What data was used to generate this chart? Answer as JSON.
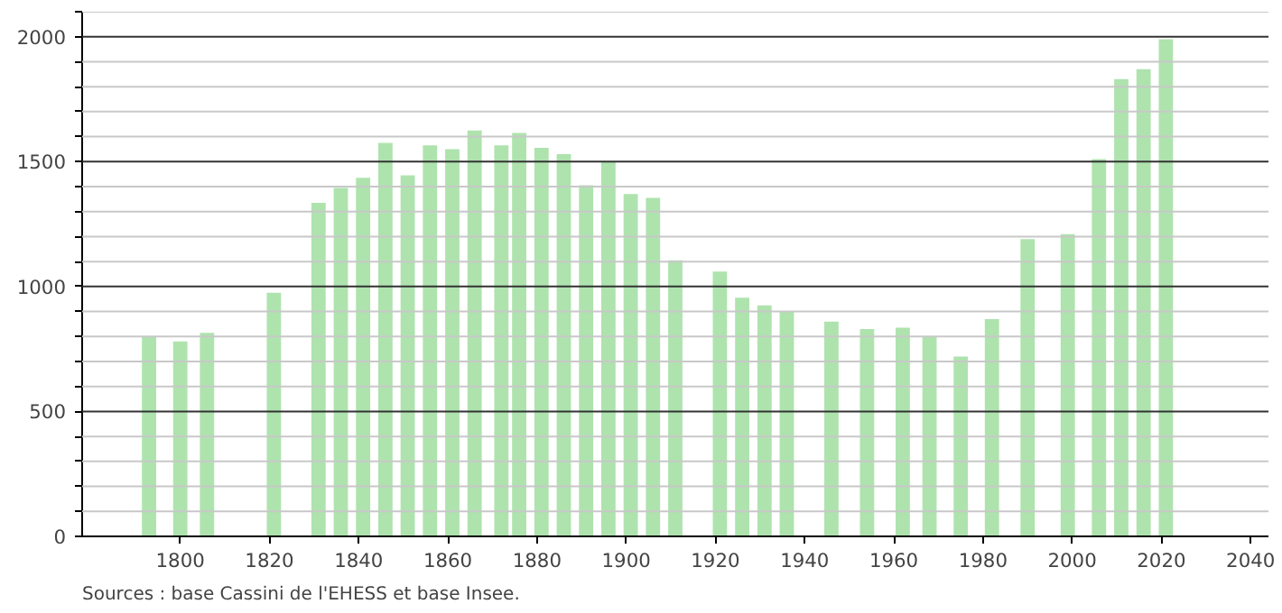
{
  "chart_data": {
    "type": "bar",
    "x": [
      1793,
      1800,
      1806,
      1821,
      1831,
      1836,
      1841,
      1846,
      1851,
      1856,
      1861,
      1866,
      1872,
      1876,
      1881,
      1886,
      1891,
      1896,
      1901,
      1906,
      1911,
      1921,
      1926,
      1931,
      1936,
      1946,
      1954,
      1962,
      1968,
      1975,
      1982,
      1990,
      1999,
      2006,
      2011,
      2016,
      2021
    ],
    "values": [
      800,
      780,
      815,
      975,
      1335,
      1395,
      1435,
      1575,
      1445,
      1565,
      1550,
      1625,
      1565,
      1615,
      1555,
      1530,
      1405,
      1500,
      1370,
      1355,
      1105,
      1060,
      955,
      925,
      900,
      860,
      830,
      835,
      800,
      720,
      870,
      1190,
      1210,
      1510,
      1830,
      1870,
      1990
    ],
    "color": "#aee3ae",
    "xlim": [
      1778,
      2044
    ],
    "xticks": [
      1800,
      1820,
      1840,
      1860,
      1880,
      1900,
      1920,
      1940,
      1960,
      1980,
      2000,
      2020,
      2040
    ],
    "ylim": [
      0,
      2100
    ],
    "yticks": [
      0,
      {
        "value": 100,
        "label": null
      },
      {
        "value": 200,
        "label": null
      },
      {
        "value": 300,
        "label": null
      },
      {
        "value": 400,
        "label": null
      },
      500,
      {
        "value": 600,
        "label": null
      },
      {
        "value": 700,
        "label": null
      },
      {
        "value": 800,
        "label": null
      },
      {
        "value": 900,
        "label": null
      },
      1000,
      {
        "value": 1100,
        "label": null
      },
      {
        "value": 1200,
        "label": null
      },
      {
        "value": 1300,
        "label": null
      },
      {
        "value": 1400,
        "label": null
      },
      1500,
      {
        "value": 1600,
        "label": null
      },
      {
        "value": 1700,
        "label": null
      },
      {
        "value": 1800,
        "label": null
      },
      {
        "value": 1900,
        "label": null
      },
      2000,
      {
        "value": 2100,
        "label": null
      }
    ],
    "grid": "y",
    "annotations": [
      "Sources : base Cassini de l'EHESS et base Insee."
    ]
  }
}
